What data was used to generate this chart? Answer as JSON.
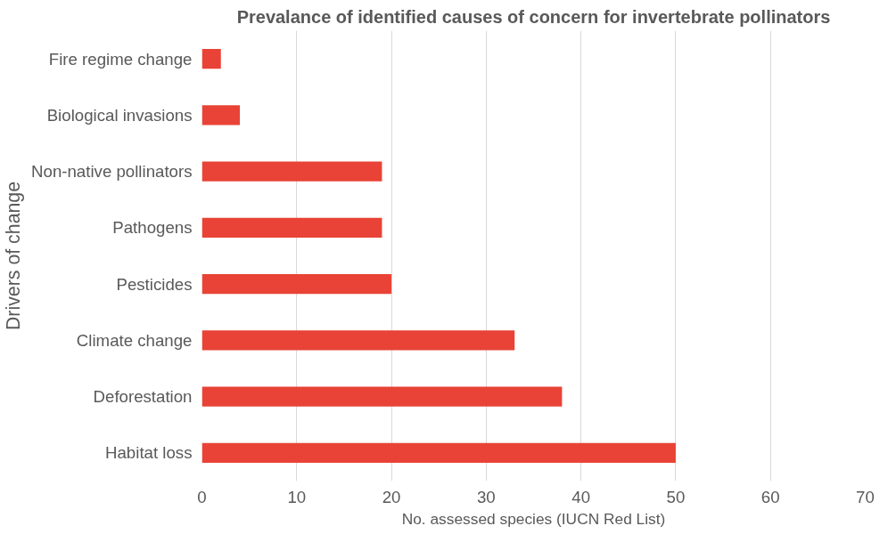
{
  "chart_data": {
    "type": "bar",
    "orientation": "horizontal",
    "title": "Prevalance of identified causes of concern for invertebrate pollinators",
    "xlabel": "No. assessed species (IUCN Red List)",
    "ylabel": "Drivers of change",
    "categories": [
      "Fire regime change",
      "Biological invasions",
      "Non-native pollinators",
      "Pathogens",
      "Pesticides",
      "Climate change",
      "Deforestation",
      "Habitat loss"
    ],
    "values": [
      2,
      4,
      19,
      19,
      20,
      33,
      38,
      50
    ],
    "color": "#e84336",
    "xlim": [
      0,
      70
    ],
    "xticks": [
      0,
      10,
      20,
      30,
      40,
      50,
      60,
      70
    ],
    "grid": "x"
  }
}
